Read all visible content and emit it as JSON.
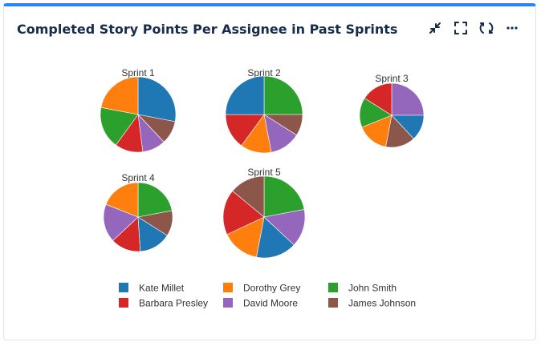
{
  "panel": {
    "title": "Completed Story Points Per Assignee in Past Sprints",
    "tools": [
      "collapse-icon",
      "fullscreen-icon",
      "refresh-icon",
      "more-icon"
    ]
  },
  "chart_data": {
    "type": "pie",
    "title": "Completed Story Points Per Assignee in Past Sprints",
    "assignees": [
      "Kate Millet",
      "Dorothy Grey",
      "John Smith",
      "Barbara Presley",
      "David Moore",
      "James Johnson"
    ],
    "colors": {
      "Kate Millet": "#1f77b4",
      "Dorothy Grey": "#ff7f0e",
      "John Smith": "#2ca02c",
      "Barbara Presley": "#d62728",
      "David Moore": "#9467bd",
      "James Johnson": "#8c564b"
    },
    "sprints": [
      {
        "label": "Sprint 1",
        "slices": [
          {
            "assignee": "Kate Millet",
            "value": 28
          },
          {
            "assignee": "James Johnson",
            "value": 10
          },
          {
            "assignee": "David Moore",
            "value": 10
          },
          {
            "assignee": "Barbara Presley",
            "value": 12
          },
          {
            "assignee": "John Smith",
            "value": 18
          },
          {
            "assignee": "Dorothy Grey",
            "value": 22
          }
        ]
      },
      {
        "label": "Sprint 2",
        "slices": [
          {
            "assignee": "John Smith",
            "value": 25
          },
          {
            "assignee": "James Johnson",
            "value": 9
          },
          {
            "assignee": "David Moore",
            "value": 13
          },
          {
            "assignee": "Dorothy Grey",
            "value": 13
          },
          {
            "assignee": "Barbara Presley",
            "value": 15
          },
          {
            "assignee": "Kate Millet",
            "value": 25
          }
        ]
      },
      {
        "label": "Sprint 3",
        "slices": [
          {
            "assignee": "David Moore",
            "value": 25
          },
          {
            "assignee": "Kate Millet",
            "value": 13
          },
          {
            "assignee": "James Johnson",
            "value": 15
          },
          {
            "assignee": "Dorothy Grey",
            "value": 16
          },
          {
            "assignee": "John Smith",
            "value": 15
          },
          {
            "assignee": "Barbara Presley",
            "value": 16
          }
        ]
      },
      {
        "label": "Sprint 4",
        "slices": [
          {
            "assignee": "John Smith",
            "value": 22
          },
          {
            "assignee": "James Johnson",
            "value": 12
          },
          {
            "assignee": "Kate Millet",
            "value": 15
          },
          {
            "assignee": "Barbara Presley",
            "value": 14
          },
          {
            "assignee": "David Moore",
            "value": 18
          },
          {
            "assignee": "Dorothy Grey",
            "value": 19
          }
        ]
      },
      {
        "label": "Sprint 5",
        "slices": [
          {
            "assignee": "John Smith",
            "value": 22
          },
          {
            "assignee": "David Moore",
            "value": 15
          },
          {
            "assignee": "Kate Millet",
            "value": 16
          },
          {
            "assignee": "Dorothy Grey",
            "value": 15
          },
          {
            "assignee": "Barbara Presley",
            "value": 18
          },
          {
            "assignee": "James Johnson",
            "value": 14
          }
        ]
      }
    ],
    "legend": {
      "position": "bottom",
      "entries": [
        "Kate Millet",
        "Dorothy Grey",
        "John Smith",
        "Barbara Presley",
        "David Moore",
        "James Johnson"
      ]
    }
  }
}
